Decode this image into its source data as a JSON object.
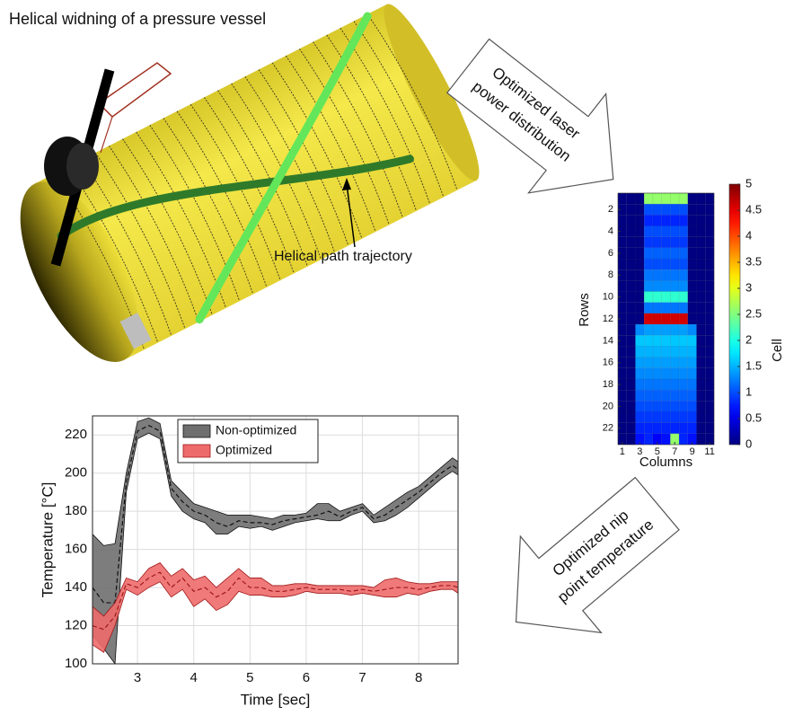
{
  "illustration": {
    "title": "Helical widning of a pressure vessel",
    "annotation": "Helical path trajectory"
  },
  "arrows": [
    {
      "lines": [
        "Optimized laser",
        "power distribution"
      ]
    },
    {
      "lines": [
        "Optimized nip",
        "point temperature"
      ]
    }
  ],
  "chart_data": [
    {
      "type": "heatmap",
      "xlabel": "Columns",
      "ylabel": "Rows",
      "colorbar_label": "Cell",
      "colormap": "jet",
      "x": [
        1,
        2,
        3,
        4,
        5,
        6,
        7,
        8,
        9,
        10,
        11
      ],
      "y": [
        1,
        2,
        3,
        4,
        5,
        6,
        7,
        8,
        9,
        10,
        11,
        12,
        13,
        14,
        15,
        16,
        17,
        18,
        19,
        20,
        21,
        22,
        23
      ],
      "xlim": [
        0.5,
        11.5
      ],
      "ylim": [
        0.5,
        23.5
      ],
      "xticks": [
        1,
        3,
        5,
        7,
        9,
        11
      ],
      "yticks": [
        2,
        4,
        6,
        8,
        10,
        12,
        14,
        16,
        18,
        20,
        22
      ],
      "clim": [
        0,
        5
      ],
      "cticks": [
        0,
        0.5,
        1,
        1.5,
        2,
        2.5,
        3,
        3.5,
        4,
        4.5,
        5
      ],
      "values": [
        [
          0,
          0,
          0,
          2.6,
          2.6,
          2.6,
          2.6,
          2.6,
          0,
          0,
          0
        ],
        [
          0,
          0,
          0,
          1.0,
          1.0,
          1.0,
          1.0,
          1.0,
          0,
          0,
          0
        ],
        [
          0,
          0,
          0,
          0.8,
          0.8,
          0.8,
          0.8,
          0.8,
          0,
          0,
          0
        ],
        [
          0,
          0,
          0,
          1.0,
          1.0,
          1.0,
          1.0,
          1.0,
          0,
          0,
          0
        ],
        [
          0,
          0,
          0,
          0.9,
          0.9,
          0.9,
          0.9,
          0.9,
          0,
          0,
          0
        ],
        [
          0,
          0,
          0,
          1.1,
          1.1,
          1.1,
          1.1,
          1.1,
          0,
          0,
          0
        ],
        [
          0,
          0,
          0,
          1.0,
          1.0,
          1.0,
          1.0,
          1.0,
          0,
          0,
          0
        ],
        [
          0,
          0,
          0,
          1.2,
          1.2,
          1.2,
          1.2,
          1.2,
          0,
          0,
          0
        ],
        [
          0,
          0,
          0,
          1.3,
          1.3,
          1.3,
          1.3,
          1.3,
          0,
          0,
          0
        ],
        [
          0,
          0,
          0,
          2.1,
          2.1,
          2.1,
          2.1,
          2.1,
          0,
          0,
          0
        ],
        [
          0,
          0,
          0,
          1.2,
          1.2,
          1.2,
          1.2,
          1.2,
          0,
          0,
          0
        ],
        [
          0,
          0,
          0,
          4.6,
          4.6,
          4.6,
          4.6,
          4.6,
          0,
          0,
          0
        ],
        [
          0,
          0,
          1.3,
          1.4,
          1.4,
          1.4,
          1.4,
          1.4,
          1.3,
          0,
          0
        ],
        [
          0,
          0,
          1.6,
          1.6,
          1.6,
          1.6,
          1.6,
          1.6,
          1.6,
          0,
          0
        ],
        [
          0,
          0,
          1.5,
          1.5,
          1.5,
          1.5,
          1.5,
          1.5,
          1.5,
          0,
          0
        ],
        [
          0,
          0,
          1.4,
          1.4,
          1.4,
          1.4,
          1.4,
          1.4,
          1.4,
          0,
          0
        ],
        [
          0,
          0,
          1.3,
          1.3,
          1.3,
          1.3,
          1.3,
          1.3,
          1.3,
          0,
          0
        ],
        [
          0,
          0,
          1.2,
          1.2,
          1.2,
          1.2,
          1.2,
          1.2,
          1.2,
          0,
          0
        ],
        [
          0,
          0,
          1.1,
          1.1,
          1.1,
          1.1,
          1.1,
          1.1,
          1.1,
          0,
          0
        ],
        [
          0,
          0,
          1.0,
          1.0,
          1.0,
          1.0,
          1.0,
          1.0,
          1.0,
          0,
          0
        ],
        [
          0,
          0,
          0.9,
          0.9,
          0.9,
          0.9,
          0.9,
          0.9,
          0.9,
          0,
          0
        ],
        [
          0,
          0,
          0.8,
          0.8,
          0.8,
          0.8,
          0.8,
          0.8,
          0.8,
          0,
          0
        ],
        [
          0,
          0,
          0.7,
          0.8,
          0.6,
          0.7,
          2.6,
          0.8,
          0.7,
          0,
          0
        ]
      ]
    },
    {
      "type": "band",
      "xlabel": "Time [sec]",
      "ylabel": "Temperature [°C]",
      "x": [
        2.2,
        2.4,
        2.6,
        2.8,
        3.0,
        3.2,
        3.4,
        3.6,
        3.8,
        4.0,
        4.2,
        4.4,
        4.6,
        4.8,
        5.0,
        5.2,
        5.4,
        5.6,
        5.8,
        6.0,
        6.2,
        6.4,
        6.6,
        6.8,
        7.0,
        7.2,
        7.4,
        7.6,
        7.8,
        8.0,
        8.2,
        8.4,
        8.6,
        8.7
      ],
      "xlim": [
        2.2,
        8.7
      ],
      "ylim": [
        100,
        230
      ],
      "xticks": [
        3,
        4,
        5,
        6,
        7,
        8
      ],
      "yticks": [
        100,
        120,
        140,
        160,
        180,
        200,
        220
      ],
      "grid": true,
      "legend": "top",
      "series": [
        {
          "name": "Non-optimized",
          "color": "#6f6f6f",
          "line_color": "#111111",
          "values": [
            140,
            132,
            132,
            195,
            222,
            225,
            222,
            192,
            185,
            180,
            178,
            174,
            172,
            175,
            174,
            174,
            173,
            175,
            176,
            177,
            178,
            180,
            177,
            180,
            182,
            176,
            178,
            182,
            186,
            190,
            195,
            200,
            204,
            202
          ],
          "lower": [
            115,
            108,
            100,
            190,
            218,
            221,
            218,
            188,
            180,
            176,
            174,
            168,
            168,
            172,
            171,
            172,
            170,
            172,
            174,
            175,
            176,
            175,
            175,
            178,
            180,
            174,
            175,
            178,
            182,
            187,
            192,
            197,
            201,
            199
          ],
          "upper": [
            168,
            162,
            163,
            200,
            227,
            229,
            226,
            196,
            190,
            184,
            182,
            180,
            178,
            178,
            178,
            177,
            176,
            178,
            178,
            179,
            184,
            184,
            180,
            182,
            184,
            178,
            182,
            186,
            190,
            193,
            198,
            203,
            208,
            206
          ]
        },
        {
          "name": "Optimized",
          "color": "#ee6b6b",
          "line_color": "#a01818",
          "values": [
            120,
            118,
            125,
            142,
            140,
            145,
            148,
            140,
            145,
            138,
            140,
            135,
            138,
            145,
            140,
            140,
            138,
            138,
            139,
            140,
            139,
            139,
            139,
            138,
            139,
            138,
            139,
            140,
            140,
            139,
            140,
            141,
            141,
            140
          ],
          "lower": [
            110,
            106,
            120,
            139,
            136,
            140,
            143,
            135,
            139,
            130,
            134,
            128,
            131,
            138,
            136,
            136,
            135,
            135,
            136,
            138,
            137,
            137,
            137,
            136,
            137,
            136,
            135,
            135,
            137,
            136,
            138,
            139,
            139,
            137
          ],
          "upper": [
            130,
            125,
            132,
            145,
            143,
            150,
            153,
            146,
            150,
            144,
            146,
            140,
            145,
            150,
            145,
            145,
            141,
            141,
            142,
            142,
            141,
            141,
            141,
            141,
            141,
            140,
            144,
            145,
            143,
            142,
            142,
            143,
            143,
            143
          ]
        }
      ]
    }
  ]
}
